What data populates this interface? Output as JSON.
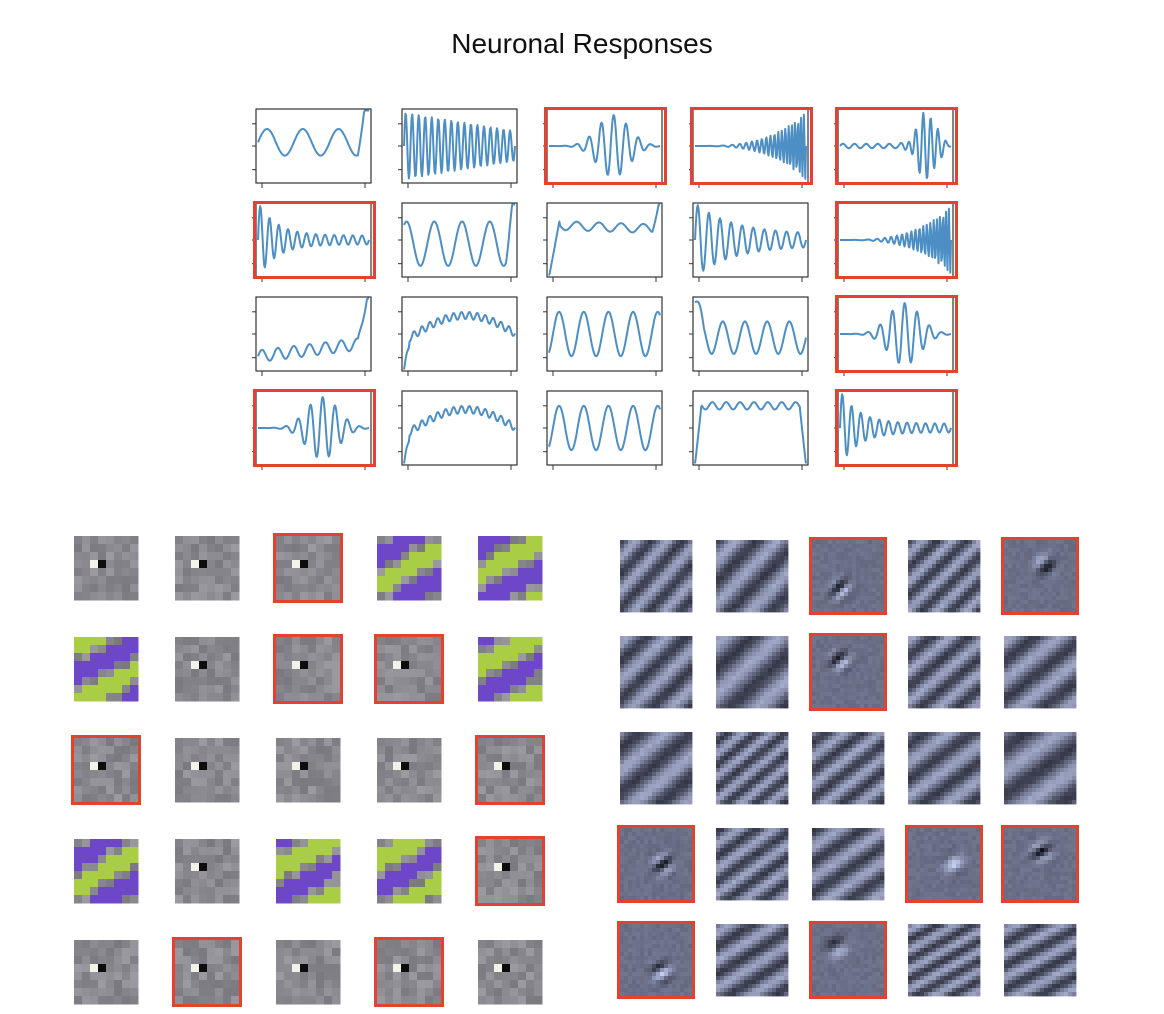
{
  "title": "Neuronal Responses",
  "colors": {
    "trace": "#4d8fc4",
    "frame": "#333333",
    "highlight": "#e2422f"
  },
  "responses": {
    "rows": 4,
    "cols": 5,
    "highlighted": [
      [
        0,
        2
      ],
      [
        0,
        3
      ],
      [
        0,
        4
      ],
      [
        1,
        0
      ],
      [
        1,
        4
      ],
      [
        2,
        4
      ],
      [
        3,
        0
      ],
      [
        3,
        4
      ]
    ],
    "traces": [
      [
        "wavy-rise",
        "dense-decay",
        "burst-mid",
        "chirp-up",
        "burst-late"
      ],
      [
        "burst-early",
        "wide-oscillation",
        "step-plateau",
        "damped",
        "chirp-up"
      ],
      [
        "low-rise",
        "slow-ramp",
        "oscillation",
        "oscillation-down",
        "burst-mid"
      ],
      [
        "burst-mid",
        "slow-ramp",
        "oscillation",
        "plateau-arc",
        "burst-early"
      ]
    ]
  },
  "color_filters": {
    "rows": 5,
    "cols": 5,
    "highlighted": [
      [
        0,
        2
      ],
      [
        1,
        2
      ],
      [
        1,
        3
      ],
      [
        2,
        0
      ],
      [
        2,
        4
      ],
      [
        3,
        4
      ],
      [
        4,
        1
      ],
      [
        4,
        3
      ]
    ]
  },
  "gray_filters": {
    "rows": 5,
    "cols": 5,
    "highlighted": [
      [
        0,
        2
      ],
      [
        0,
        4
      ],
      [
        1,
        2
      ],
      [
        3,
        0
      ],
      [
        3,
        3
      ],
      [
        3,
        4
      ],
      [
        4,
        0
      ],
      [
        4,
        2
      ]
    ]
  }
}
